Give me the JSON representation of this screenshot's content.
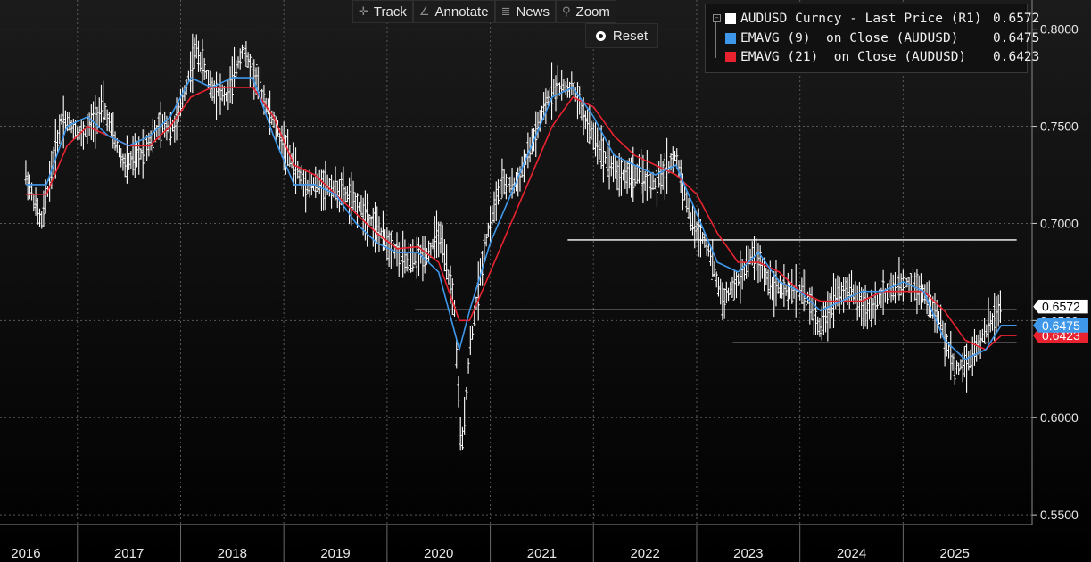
{
  "toolbar": {
    "track": "Track",
    "annotate": "Annotate",
    "news": "News",
    "zoom": "Zoom",
    "reset": "Reset",
    "icons": [
      "crosshair-icon",
      "pencil-icon",
      "news-icon",
      "magnifier-icon",
      "radio-icon"
    ]
  },
  "legend": {
    "items": [
      {
        "label": "AUDUSD Curncy - Last Price (R1)",
        "value": "0.6572",
        "color": "#ffffff"
      },
      {
        "label": "EMAVG (9)  on Close (AUDUSD)",
        "value": "0.6475",
        "color": "#3f97ea"
      },
      {
        "label": "EMAVG (21)  on Close (AUDUSD)",
        "value": "0.6423",
        "color": "#e8232f"
      }
    ]
  },
  "chart_data": {
    "type": "line",
    "x_axis": {
      "labels": [
        "2016",
        "2017",
        "2018",
        "2019",
        "2020",
        "2021",
        "2022",
        "2023",
        "2024",
        "2025"
      ]
    },
    "y_axis": {
      "side": "right",
      "ticks": [
        "0.5500",
        "0.6000",
        "0.6500",
        "0.7000",
        "0.7500",
        "0.8000"
      ],
      "ylim": [
        0.545,
        0.815
      ]
    },
    "grid": true,
    "last_value_tags": [
      {
        "label": "0.6572",
        "value": 0.6572,
        "color": "#ffffff",
        "text_color": "#000000"
      },
      {
        "label": "0.6475",
        "value": 0.6475,
        "color": "#3f97ea",
        "text_color": "#ffffff"
      },
      {
        "label": "0.6423",
        "value": 0.6423,
        "color": "#e8232f",
        "text_color": "#ffffff"
      }
    ],
    "horizontal_lines": [
      {
        "value": 0.6915,
        "from_year": 2021.25,
        "to_year": 2025.6
      },
      {
        "value": 0.6555,
        "from_year": 2019.77,
        "to_year": 2025.6
      },
      {
        "value": 0.6385,
        "from_year": 2022.85,
        "to_year": 2025.6
      }
    ],
    "series": [
      {
        "name": "AUDUSD Curncy - Last Price (R1)",
        "color": "#ffffff",
        "x": [
          2016.0,
          2016.15,
          2016.35,
          2016.55,
          2016.75,
          2016.95,
          2017.1,
          2017.3,
          2017.45,
          2017.65,
          2017.8,
          2017.95,
          2018.1,
          2018.3,
          2018.5,
          2018.7,
          2018.9,
          2019.1,
          2019.3,
          2019.5,
          2019.7,
          2019.9,
          2020.0,
          2020.15,
          2020.22,
          2020.3,
          2020.45,
          2020.6,
          2020.75,
          2020.9,
          2021.1,
          2021.3,
          2021.45,
          2021.6,
          2021.75,
          2021.95,
          2022.1,
          2022.3,
          2022.45,
          2022.6,
          2022.75,
          2022.9,
          2023.05,
          2023.2,
          2023.35,
          2023.55,
          2023.7,
          2023.85,
          2024.0,
          2024.15,
          2024.35,
          2024.55,
          2024.7,
          2024.85,
          2025.0,
          2025.15,
          2025.3,
          2025.45,
          2025.6
        ],
        "y": [
          0.725,
          0.7,
          0.755,
          0.745,
          0.76,
          0.73,
          0.735,
          0.75,
          0.75,
          0.79,
          0.77,
          0.765,
          0.79,
          0.765,
          0.74,
          0.72,
          0.72,
          0.715,
          0.705,
          0.69,
          0.68,
          0.685,
          0.695,
          0.66,
          0.58,
          0.635,
          0.69,
          0.72,
          0.72,
          0.74,
          0.77,
          0.77,
          0.75,
          0.735,
          0.725,
          0.725,
          0.72,
          0.735,
          0.7,
          0.69,
          0.66,
          0.67,
          0.685,
          0.67,
          0.665,
          0.665,
          0.645,
          0.665,
          0.665,
          0.655,
          0.665,
          0.67,
          0.665,
          0.65,
          0.625,
          0.63,
          0.645,
          0.6572,
          0.6572
        ]
      },
      {
        "name": "EMAVG (9)  on Close (AUDUSD)",
        "color": "#3f97ea",
        "x": [
          2016.0,
          2016.2,
          2016.4,
          2016.6,
          2016.8,
          2017.0,
          2017.2,
          2017.4,
          2017.6,
          2017.8,
          2018.0,
          2018.2,
          2018.4,
          2018.6,
          2018.8,
          2019.0,
          2019.2,
          2019.4,
          2019.6,
          2019.8,
          2020.0,
          2020.2,
          2020.3,
          2020.5,
          2020.7,
          2020.9,
          2021.1,
          2021.3,
          2021.5,
          2021.7,
          2021.9,
          2022.1,
          2022.3,
          2022.5,
          2022.7,
          2022.9,
          2023.1,
          2023.3,
          2023.5,
          2023.7,
          2023.9,
          2024.1,
          2024.3,
          2024.5,
          2024.7,
          2024.9,
          2025.1,
          2025.3,
          2025.45,
          2025.6
        ],
        "y": [
          0.72,
          0.72,
          0.75,
          0.755,
          0.745,
          0.74,
          0.745,
          0.755,
          0.775,
          0.77,
          0.775,
          0.775,
          0.745,
          0.72,
          0.72,
          0.715,
          0.7,
          0.69,
          0.685,
          0.685,
          0.675,
          0.635,
          0.655,
          0.69,
          0.715,
          0.74,
          0.765,
          0.77,
          0.755,
          0.735,
          0.73,
          0.725,
          0.73,
          0.705,
          0.68,
          0.675,
          0.685,
          0.67,
          0.665,
          0.655,
          0.66,
          0.665,
          0.665,
          0.67,
          0.665,
          0.64,
          0.63,
          0.635,
          0.6475,
          0.6475
        ]
      },
      {
        "name": "EMAVG (21)  on Close (AUDUSD)",
        "color": "#e8232f",
        "x": [
          2016.0,
          2016.2,
          2016.4,
          2016.6,
          2016.8,
          2017.0,
          2017.2,
          2017.4,
          2017.6,
          2017.8,
          2018.0,
          2018.2,
          2018.4,
          2018.6,
          2018.8,
          2019.0,
          2019.2,
          2019.4,
          2019.6,
          2019.8,
          2020.0,
          2020.2,
          2020.3,
          2020.5,
          2020.7,
          2020.9,
          2021.1,
          2021.3,
          2021.5,
          2021.7,
          2021.9,
          2022.1,
          2022.3,
          2022.5,
          2022.7,
          2022.9,
          2023.1,
          2023.3,
          2023.5,
          2023.7,
          2023.9,
          2024.1,
          2024.3,
          2024.5,
          2024.7,
          2024.9,
          2025.1,
          2025.3,
          2025.45,
          2025.6
        ],
        "y": [
          0.715,
          0.715,
          0.74,
          0.75,
          0.745,
          0.74,
          0.74,
          0.75,
          0.765,
          0.77,
          0.77,
          0.77,
          0.755,
          0.73,
          0.725,
          0.715,
          0.705,
          0.695,
          0.687,
          0.688,
          0.68,
          0.65,
          0.65,
          0.675,
          0.7,
          0.725,
          0.75,
          0.765,
          0.76,
          0.745,
          0.735,
          0.73,
          0.725,
          0.715,
          0.695,
          0.68,
          0.68,
          0.675,
          0.665,
          0.66,
          0.66,
          0.66,
          0.665,
          0.665,
          0.665,
          0.655,
          0.64,
          0.635,
          0.6423,
          0.6423
        ]
      }
    ]
  }
}
